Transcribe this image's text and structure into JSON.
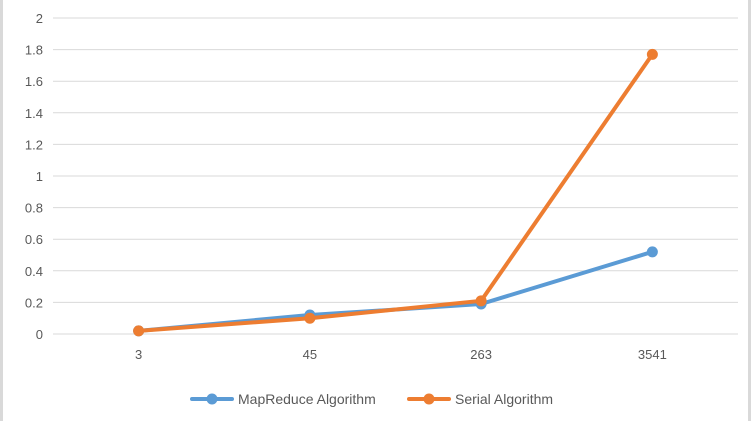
{
  "chart_data": {
    "type": "line",
    "title": "",
    "xlabel": "",
    "ylabel": "",
    "categories": [
      "3",
      "45",
      "263",
      "3541"
    ],
    "yticks": [
      "0",
      "0.2",
      "0.4",
      "0.6",
      "0.8",
      "1",
      "1.2",
      "1.4",
      "1.6",
      "1.8",
      "2"
    ],
    "ylim": [
      0,
      2
    ],
    "grid": "horizontal",
    "legend_position": "bottom",
    "series": [
      {
        "name": "MapReduce Algorithm",
        "color": "#5b9bd5",
        "values": [
          0.02,
          0.12,
          0.19,
          0.52
        ]
      },
      {
        "name": "Serial Algorithm",
        "color": "#ed7d31",
        "values": [
          0.02,
          0.1,
          0.21,
          1.77
        ]
      }
    ]
  }
}
